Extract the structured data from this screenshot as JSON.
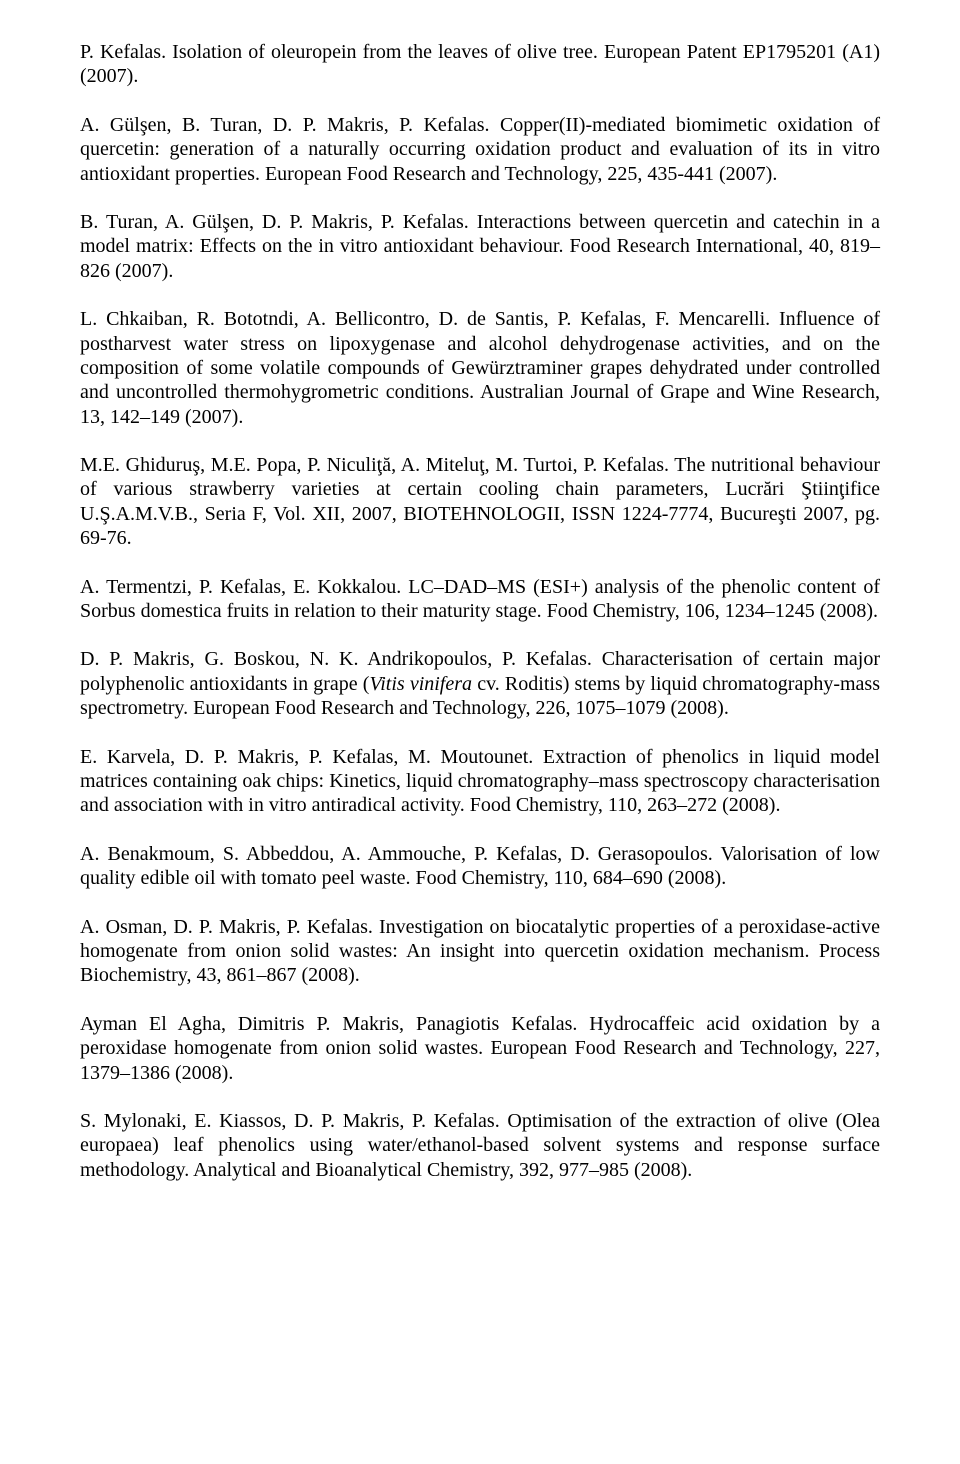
{
  "references": [
    {
      "text": "P. Kefalas. Isolation of oleuropein from the leaves of olive tree. European Patent EP1795201 (A1) (2007)."
    },
    {
      "text": "A. Gülşen, B. Turan, D. P. Makris, P. Kefalas. Copper(II)-mediated biomimetic oxidation of quercetin: generation of a naturally occurring oxidation product and evaluation of its in vitro antioxidant properties. European Food Research and Technology, 225, 435-441 (2007)."
    },
    {
      "text": "B. Turan, A. Gülşen, D. P. Makris, P. Kefalas. Interactions between quercetin and catechin in a model matrix: Effects on the in vitro antioxidant behaviour. Food Research International, 40, 819–826 (2007)."
    },
    {
      "text": "L. Chkaiban, R. Bototndi, A. Bellicontro, D. de Santis, P. Kefalas, F. Mencarelli. Influence of postharvest water stress on lipoxygenase and alcohol dehydrogenase activities, and on the composition of some volatile compounds of Gewürztraminer grapes dehydrated under controlled and uncontrolled thermohygrometric conditions. Australian Journal of Grape and Wine Research, 13, 142–149 (2007)."
    },
    {
      "text": "M.E. Ghiduruş, M.E. Popa, P. Niculiţă, A. Miteluţ, M. Turtoi, P. Kefalas. The nutritional behaviour of various strawberry varieties at certain cooling chain parameters, Lucrări Ştiinţifice U.Ş.A.M.V.B., Seria F, Vol. XII, 2007, BIOTEHNOLOGII, ISSN 1224-7774, Bucureşti 2007, pg. 69-76."
    },
    {
      "text": "A. Termentzi, P. Kefalas, E. Kokkalou. LC–DAD–MS (ESI+) analysis of the phenolic content of Sorbus domestica fruits in relation to their maturity stage. Food Chemistry, 106, 1234–1245 (2008)."
    },
    {
      "text": "D. P. Makris, G. Boskou, N. K. Andrikopoulos, P. Kefalas. Characterisation of certain major polyphenolic antioxidants in grape (Vitis vinifera cv. Roditis) stems by liquid chromatography-mass spectrometry. European Food Research and Technology, 226, 1075–1079 (2008).",
      "italic_phrase": "Vitis vinifera"
    },
    {
      "text": "E. Karvela, D. P. Makris, P. Kefalas, M. Moutounet. Extraction of phenolics in liquid model matrices containing oak chips: Kinetics, liquid chromatography–mass spectroscopy characterisation and association with in vitro antiradical activity. Food Chemistry, 110, 263–272 (2008)."
    },
    {
      "text": "A. Benakmoum, S. Abbeddou, A. Ammouche, P. Kefalas, D. Gerasopoulos. Valorisation of low quality edible oil with tomato peel waste. Food Chemistry, 110, 684–690 (2008)."
    },
    {
      "text": "A. Osman, D. P. Makris, P. Kefalas. Investigation on biocatalytic properties of a peroxidase-active homogenate from onion solid wastes: An insight into quercetin oxidation mechanism. Process Biochemistry, 43, 861–867 (2008)."
    },
    {
      "text": "Ayman El Agha, Dimitris P. Makris, Panagiotis Kefalas. Hydrocaffeic acid oxidation by a peroxidase homogenate from onion solid wastes. European Food Research and Technology, 227, 1379–1386 (2008)."
    },
    {
      "text": "S. Mylonaki, E. Kiassos, D. P. Makris, P. Kefalas. Optimisation of the extraction of olive (Olea europaea) leaf phenolics using water/ethanol-based solvent systems and response surface methodology. Analytical and Bioanalytical Chemistry, 392, 977–985 (2008)."
    }
  ]
}
